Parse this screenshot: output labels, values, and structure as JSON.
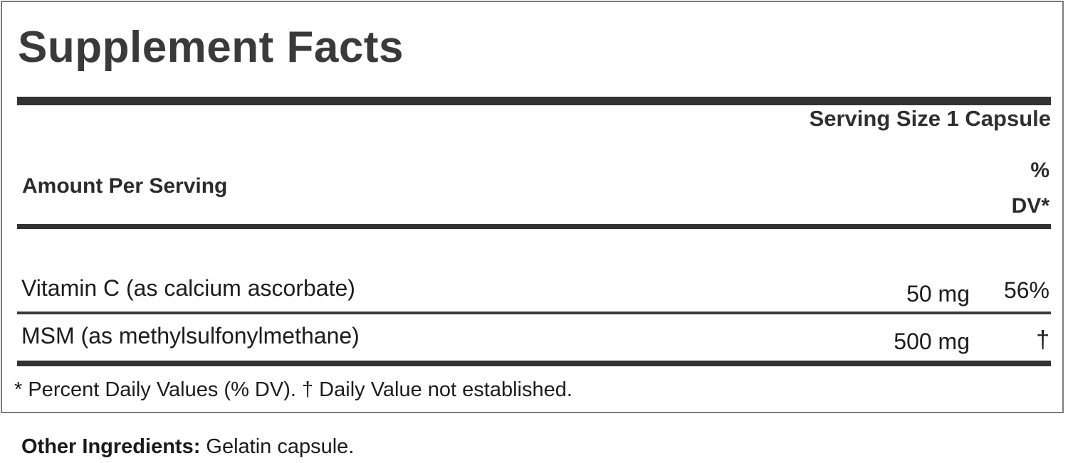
{
  "label": {
    "title": "Supplement Facts",
    "serving_size": "Serving Size 1 Capsule",
    "columns": {
      "amount_header": "Amount Per Serving",
      "dv_header_line1": "%",
      "dv_header_line2": "DV*"
    },
    "rows": [
      {
        "name": "Vitamin C (as calcium ascorbate)",
        "amount": "50 mg",
        "dv": "56%"
      },
      {
        "name": "MSM (as methylsulfonylmethane)",
        "amount": "500 mg",
        "dv": "†"
      }
    ],
    "footnote": "* Percent Daily Values (% DV). † Daily Value not established."
  },
  "other_ingredients": {
    "label": "Other Ingredients:",
    "value": " Gelatin capsule."
  },
  "colors": {
    "heading": "#3a3a3a",
    "bar": "#333333",
    "text": "#1c1c1c",
    "border": "#7d7d7d",
    "background": "#ffffff"
  }
}
